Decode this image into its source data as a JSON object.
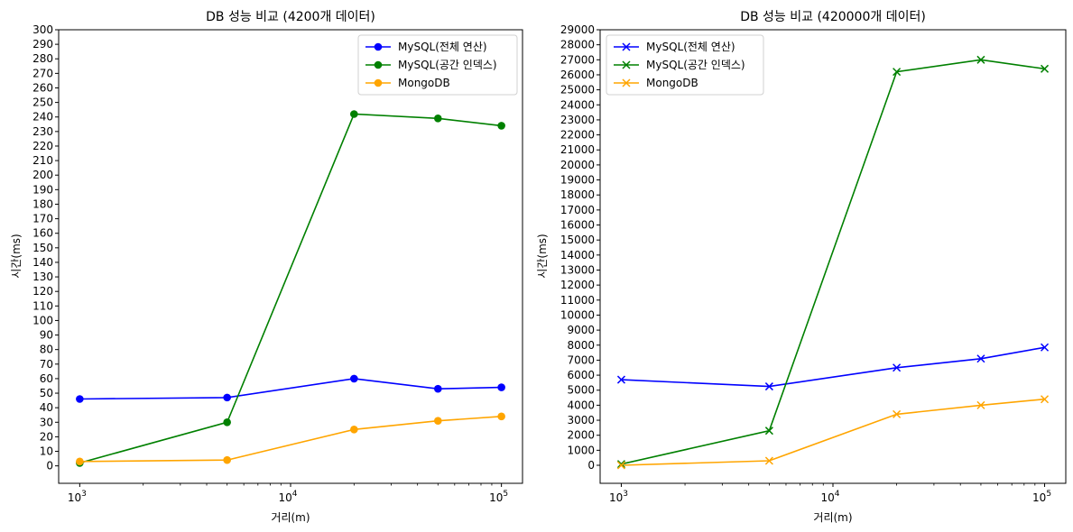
{
  "chart_data": [
    {
      "type": "line",
      "title": "DB 성능 비교 (4200개 데이터)",
      "xlabel": "거리(m)",
      "ylabel": "시간(ms)",
      "x_scale": "log",
      "x_ticks": [
        {
          "value": 1000,
          "base": "10",
          "exp": "3"
        },
        {
          "value": 10000,
          "base": "10",
          "exp": "4"
        },
        {
          "value": 100000,
          "base": "10",
          "exp": "5"
        }
      ],
      "ylim": [
        -12,
        300
      ],
      "y_ticks": [
        0,
        10,
        20,
        30,
        40,
        50,
        60,
        70,
        80,
        90,
        100,
        110,
        120,
        130,
        140,
        150,
        160,
        170,
        180,
        190,
        200,
        210,
        220,
        230,
        240,
        250,
        260,
        270,
        280,
        290,
        300
      ],
      "marker": "circle",
      "legend_position": "upper right",
      "x": [
        1000,
        5000,
        20000,
        50000,
        100000
      ],
      "series": [
        {
          "name": "MySQL(전체 연산)",
          "color": "#0000ff",
          "values": [
            46,
            47,
            60,
            53,
            54
          ]
        },
        {
          "name": "MySQL(공간 인덱스)",
          "color": "#008000",
          "values": [
            2,
            30,
            242,
            239,
            234
          ]
        },
        {
          "name": "MongoDB",
          "color": "#ffa500",
          "values": [
            3,
            4,
            25,
            31,
            34
          ]
        }
      ]
    },
    {
      "type": "line",
      "title": "DB 성능 비교 (420000개 데이터)",
      "xlabel": "거리(m)",
      "ylabel": "시간(ms)",
      "x_scale": "log",
      "x_ticks": [
        {
          "value": 1000,
          "base": "10",
          "exp": "3"
        },
        {
          "value": 10000,
          "base": "10",
          "exp": "4"
        },
        {
          "value": 100000,
          "base": "10",
          "exp": "5"
        }
      ],
      "ylim": [
        -1200,
        29000
      ],
      "y_ticks": [
        0,
        1000,
        2000,
        3000,
        4000,
        5000,
        6000,
        7000,
        8000,
        9000,
        10000,
        11000,
        12000,
        13000,
        14000,
        15000,
        16000,
        17000,
        18000,
        19000,
        20000,
        21000,
        22000,
        23000,
        24000,
        25000,
        26000,
        27000,
        28000,
        29000
      ],
      "marker": "x",
      "legend_position": "upper left",
      "x": [
        1000,
        5000,
        20000,
        50000,
        100000
      ],
      "series": [
        {
          "name": "MySQL(전체 연산)",
          "color": "#0000ff",
          "values": [
            5700,
            5250,
            6500,
            7100,
            7850
          ]
        },
        {
          "name": "MySQL(공간 인덱스)",
          "color": "#008000",
          "values": [
            80,
            2300,
            26200,
            27000,
            26400
          ]
        },
        {
          "name": "MongoDB",
          "color": "#ffa500",
          "values": [
            0,
            300,
            3400,
            4000,
            4400
          ]
        }
      ]
    }
  ]
}
